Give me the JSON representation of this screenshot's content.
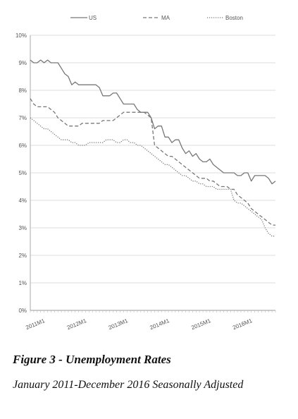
{
  "chart_data": {
    "type": "line",
    "title": "",
    "xlabel": "",
    "ylabel": "",
    "ylim": [
      0,
      10
    ],
    "yticks": [
      "0%",
      "1%",
      "2%",
      "3%",
      "4%",
      "5%",
      "6%",
      "7%",
      "8%",
      "9%",
      "10%"
    ],
    "x_start": "2011M1",
    "x_count": 72,
    "xtick_labels": [
      {
        "label": "2011M1",
        "index": 0
      },
      {
        "label": "2012M1",
        "index": 12
      },
      {
        "label": "2013M1",
        "index": 24
      },
      {
        "label": "2014M1",
        "index": 36
      },
      {
        "label": "2015M1",
        "index": 48
      },
      {
        "label": "2016M1",
        "index": 60
      }
    ],
    "grid": true,
    "legend": "top",
    "series": [
      {
        "name": "US",
        "color": "#777777",
        "dash": "solid",
        "values": [
          9.1,
          9.0,
          9.0,
          9.1,
          9.0,
          9.1,
          9.0,
          9.0,
          9.0,
          8.8,
          8.6,
          8.5,
          8.2,
          8.3,
          8.2,
          8.2,
          8.2,
          8.2,
          8.2,
          8.2,
          8.1,
          7.8,
          7.8,
          7.8,
          7.9,
          7.9,
          7.7,
          7.5,
          7.5,
          7.5,
          7.5,
          7.3,
          7.2,
          7.2,
          7.2,
          7.0,
          6.6,
          6.7,
          6.7,
          6.3,
          6.3,
          6.1,
          6.2,
          6.2,
          5.9,
          5.7,
          5.8,
          5.6,
          5.7,
          5.5,
          5.4,
          5.4,
          5.5,
          5.3,
          5.2,
          5.1,
          5.0,
          5.0,
          5.0,
          5.0,
          4.9,
          4.9,
          5.0,
          5.0,
          4.7,
          4.9,
          4.9,
          4.9,
          4.9,
          4.8,
          4.6,
          4.7
        ]
      },
      {
        "name": "MA",
        "color": "#777777",
        "dash": "dashed",
        "values": [
          7.7,
          7.5,
          7.4,
          7.4,
          7.4,
          7.4,
          7.3,
          7.2,
          7.0,
          6.9,
          6.8,
          6.7,
          6.7,
          6.7,
          6.7,
          6.8,
          6.8,
          6.8,
          6.8,
          6.8,
          6.8,
          6.9,
          6.9,
          6.9,
          6.9,
          7.0,
          7.1,
          7.2,
          7.2,
          7.2,
          7.2,
          7.2,
          7.2,
          7.2,
          7.1,
          7.0,
          6.0,
          5.9,
          5.8,
          5.7,
          5.6,
          5.6,
          5.5,
          5.4,
          5.3,
          5.2,
          5.1,
          5.0,
          4.9,
          4.8,
          4.8,
          4.8,
          4.7,
          4.7,
          4.6,
          4.5,
          4.5,
          4.5,
          4.4,
          4.4,
          4.2,
          4.1,
          4.0,
          3.9,
          3.7,
          3.6,
          3.5,
          3.4,
          3.3,
          3.2,
          3.1,
          3.1
        ]
      },
      {
        "name": "Boston",
        "color": "#777777",
        "dash": "dotted",
        "values": [
          7.0,
          6.9,
          6.8,
          6.7,
          6.6,
          6.6,
          6.5,
          6.4,
          6.3,
          6.2,
          6.2,
          6.2,
          6.1,
          6.1,
          6.0,
          6.0,
          6.0,
          6.1,
          6.1,
          6.1,
          6.1,
          6.1,
          6.2,
          6.2,
          6.2,
          6.1,
          6.1,
          6.2,
          6.2,
          6.1,
          6.1,
          6.0,
          6.0,
          5.9,
          5.8,
          5.7,
          5.6,
          5.5,
          5.4,
          5.3,
          5.3,
          5.2,
          5.1,
          5.0,
          4.9,
          4.9,
          4.8,
          4.7,
          4.7,
          4.6,
          4.6,
          4.5,
          4.5,
          4.5,
          4.4,
          4.4,
          4.4,
          4.4,
          4.4,
          4.0,
          3.9,
          3.9,
          3.8,
          3.7,
          3.6,
          3.5,
          3.4,
          3.3,
          3.0,
          2.8,
          2.7,
          2.7
        ]
      }
    ]
  },
  "figure": {
    "title": "Figure 3 - Unemployment Rates",
    "subtitle": "January 2011-December 2016 Seasonally Adjusted"
  }
}
